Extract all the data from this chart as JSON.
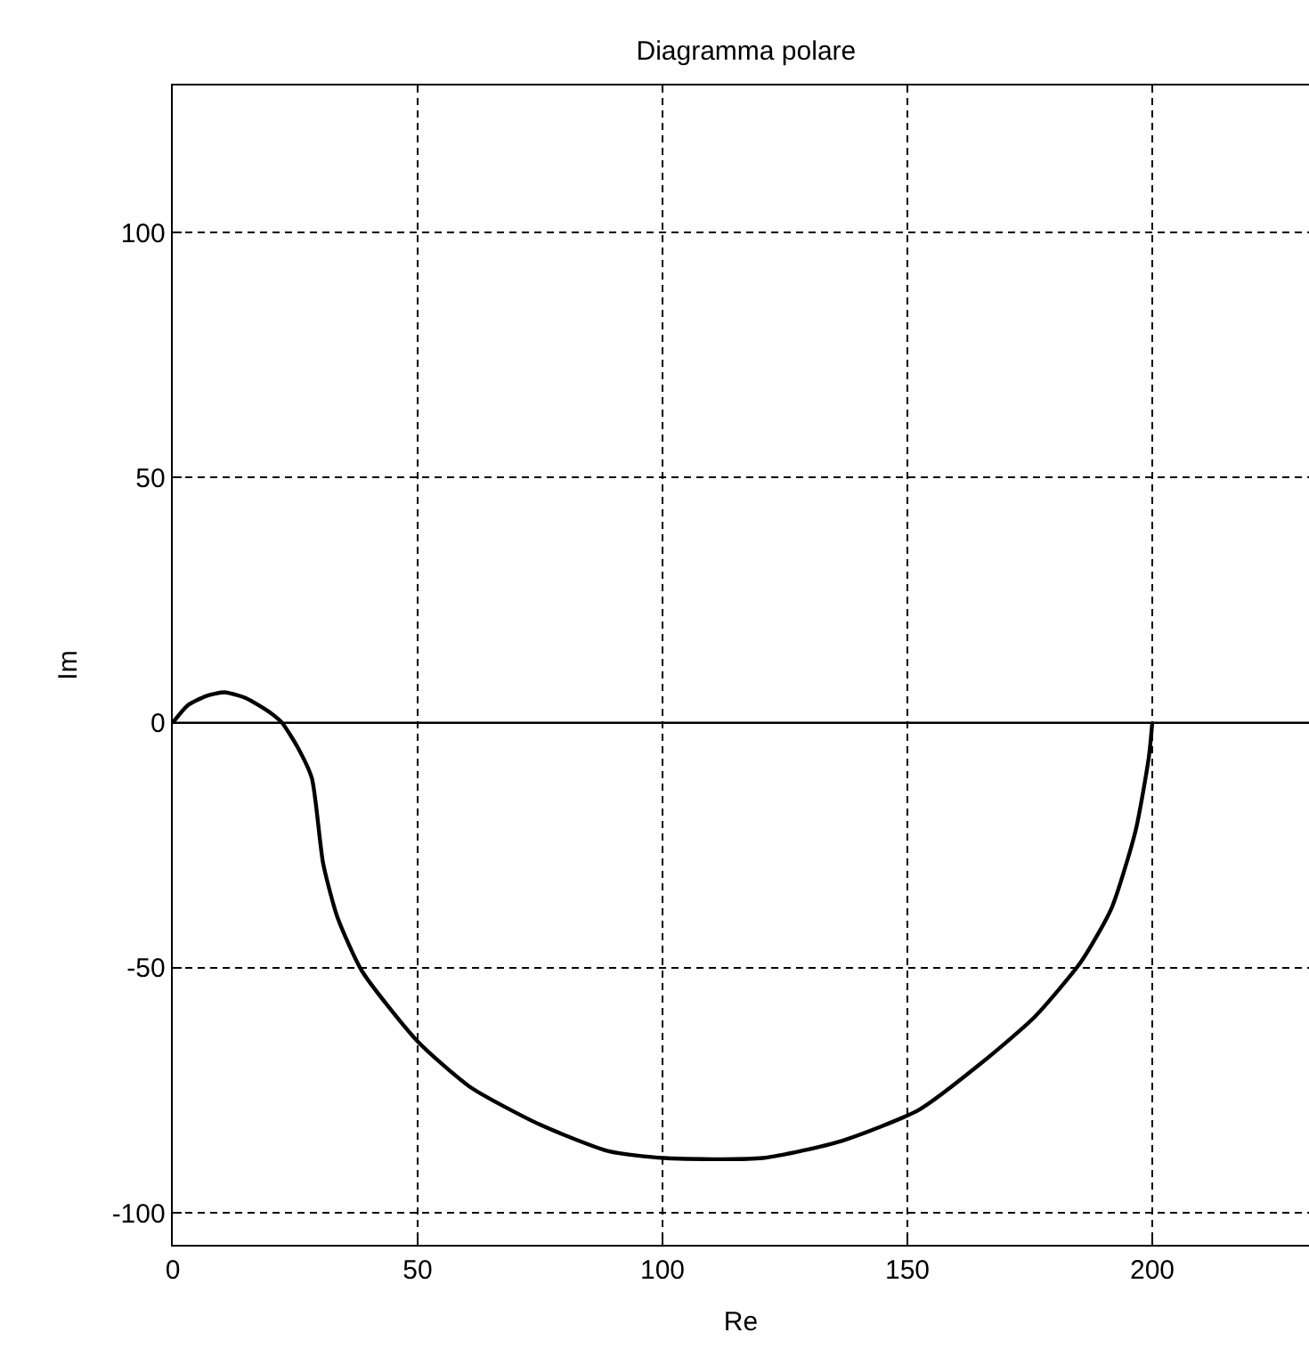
{
  "chart_data": {
    "type": "line",
    "title": "Diagramma polare",
    "xlabel": "Re",
    "ylabel": "Im",
    "x": [
      0,
      3,
      7,
      10.6,
      15,
      20,
      22.3,
      25.5,
      28.4,
      30.7,
      33.6,
      38.6,
      49.8,
      60.7,
      75,
      89,
      100.3,
      120.5,
      136.6,
      152.3,
      165,
      176,
      185.5,
      191.7,
      196.6,
      199.3,
      200
    ],
    "series": [
      {
        "color": "#000000",
        "values": [
          0,
          3.5,
          5.5,
          6.2,
          5,
          2,
          0,
          -5,
          -11.3,
          -28.7,
          -39.6,
          -50.6,
          -64.8,
          -74.3,
          -82,
          -87.4,
          -88.8,
          -88.8,
          -85.3,
          -79,
          -69.5,
          -60,
          -48.7,
          -37.8,
          -22,
          -7,
          0
        ]
      }
    ],
    "xlim": [
      0,
      232
    ],
    "ylim": [
      -106.5,
      130
    ],
    "xticks": [
      0,
      50,
      100,
      150,
      200
    ],
    "yticks": [
      -100,
      -50,
      0,
      50,
      100
    ],
    "grid": true,
    "line_style": "solid",
    "marker": "none",
    "ref_lines": [
      {
        "axis": "y",
        "value": 0,
        "color": "#000000"
      }
    ]
  }
}
